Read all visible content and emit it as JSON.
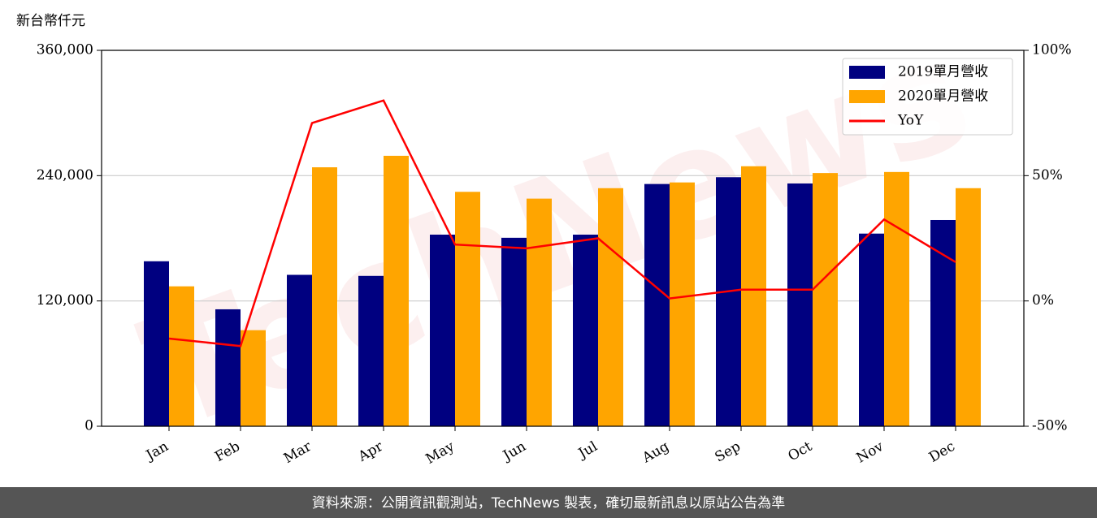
{
  "chart_data": {
    "type": "bar",
    "ylabel": "新台幣仟元",
    "watermark": "TechNews",
    "footer": "資料來源：公開資訊觀測站，TechNews 製表，確切最新訊息以原站公告為準",
    "categories": [
      "Jan",
      "Feb",
      "Mar",
      "Apr",
      "May",
      "Jun",
      "Jul",
      "Aug",
      "Sep",
      "Oct",
      "Nov",
      "Dec"
    ],
    "series": [
      {
        "name": "2019單月營收",
        "color": "#000080",
        "values": [
          158000,
          112000,
          145000,
          144000,
          183500,
          180500,
          183500,
          232000,
          238500,
          232500,
          184500,
          197500
        ]
      },
      {
        "name": "2020單月營收",
        "color": "#ffa500",
        "values": [
          134000,
          92000,
          248000,
          259000,
          224500,
          218000,
          228000,
          233500,
          249000,
          242500,
          243500,
          228000
        ]
      },
      {
        "name": "YoY",
        "color": "#ff0000",
        "type": "line",
        "axis": "y2",
        "values": [
          -15,
          -18,
          71,
          80,
          22.5,
          21,
          25,
          1,
          4.5,
          4.5,
          32.5,
          15.5
        ]
      }
    ],
    "ylim": [
      0,
      360000
    ],
    "yticks": [
      0,
      {
        "value": 120000,
        "label": "120,000"
      },
      {
        "value": 240000,
        "label": "240,000"
      },
      {
        "value": 360000,
        "label": "360,000"
      }
    ],
    "y2lim": [
      -50,
      100
    ],
    "y2ticks": [
      {
        "value": -50,
        "label": "-50%"
      },
      {
        "value": 0,
        "label": "0%"
      },
      {
        "value": 50,
        "label": "50%"
      },
      {
        "value": 100,
        "label": "100%"
      }
    ],
    "grid": true,
    "legend": "upper right"
  }
}
